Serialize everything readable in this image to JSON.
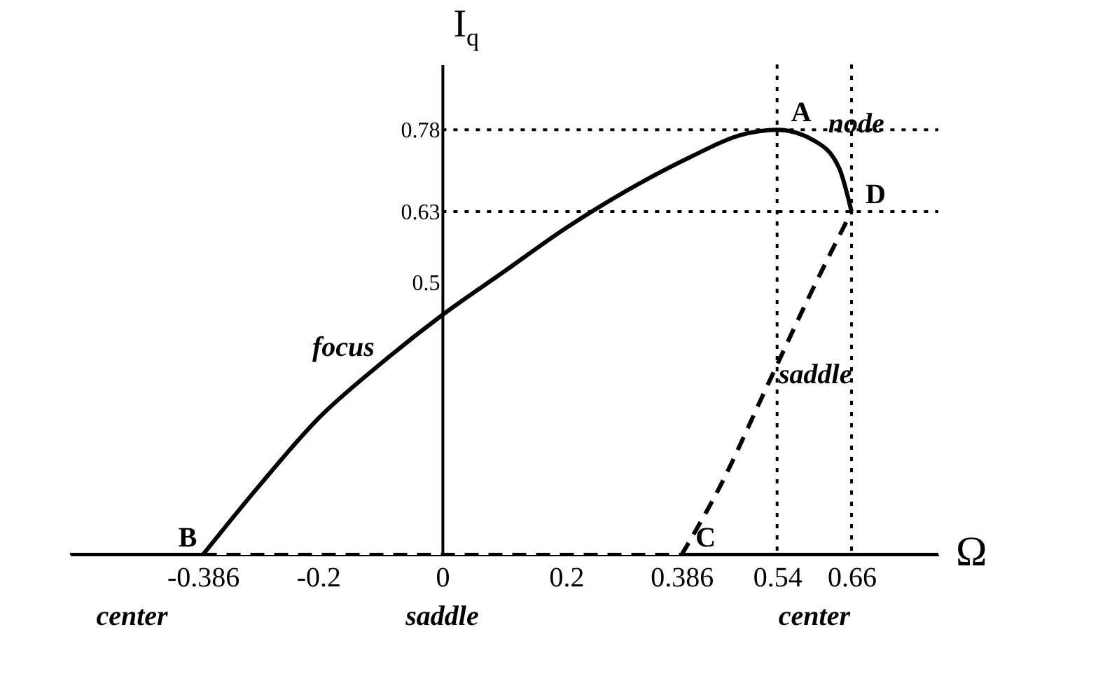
{
  "chart_data": {
    "type": "line",
    "xlabel": "Ω",
    "ylabel": "I$_{q}$",
    "xlim": [
      -0.6,
      0.8
    ],
    "ylim": [
      0,
      0.9
    ],
    "xticks": [
      -0.386,
      -0.2,
      0,
      0.2,
      0.386,
      0.54,
      0.66
    ],
    "yticks": [
      0.5,
      0.63,
      0.78
    ],
    "grid": false,
    "series": [
      {
        "color": "#000000",
        "line_style": "solid",
        "x": [
          -0.386,
          -0.3,
          -0.2,
          -0.1,
          0,
          0.1,
          0.2,
          0.3,
          0.4,
          0.48,
          0.54,
          0.6,
          0.64,
          0.66
        ],
        "values": [
          0,
          0.12,
          0.25,
          0.35,
          0.44,
          0.52,
          0.6,
          0.67,
          0.73,
          0.77,
          0.78,
          0.76,
          0.71,
          0.63
        ]
      },
      {
        "color": "#000000",
        "line_style": "dashed",
        "x": [
          0.386,
          0.45,
          0.52,
          0.59,
          0.66
        ],
        "values": [
          0,
          0.13,
          0.3,
          0.47,
          0.63
        ]
      },
      {
        "color": "#000000",
        "line_style": "solid",
        "x": [
          -0.6,
          -0.386
        ],
        "values": [
          0,
          0
        ]
      },
      {
        "color": "#000000",
        "line_style": "dashed",
        "x": [
          -0.386,
          0.386
        ],
        "values": [
          0,
          0
        ]
      },
      {
        "color": "#000000",
        "line_style": "solid",
        "x": [
          0.386,
          0.8
        ],
        "values": [
          0,
          0
        ]
      }
    ],
    "ref_lines": [
      {
        "axis": "y",
        "value": 0.78,
        "line_style": "dotted"
      },
      {
        "axis": "y",
        "value": 0.63,
        "line_style": "dotted"
      },
      {
        "axis": "x",
        "value": 0.54,
        "line_style": "dotted"
      },
      {
        "axis": "x",
        "value": 0.66,
        "line_style": "dotted"
      }
    ],
    "annotations": [
      {
        "text": "A",
        "x": 0.54,
        "y": 0.78
      },
      {
        "text": "B",
        "x": -0.386,
        "y": 0
      },
      {
        "text": "C",
        "x": 0.386,
        "y": 0
      },
      {
        "text": "D",
        "x": 0.66,
        "y": 0.63
      },
      {
        "text": "node",
        "x": 0.6,
        "y": 0.76
      },
      {
        "text": "focus",
        "x": -0.1,
        "y": 0.35
      },
      {
        "text": "saddle",
        "x": 0.52,
        "y": 0.3
      },
      {
        "text": "center",
        "x": -0.5,
        "y": 0
      },
      {
        "text": "saddle",
        "x": 0,
        "y": 0
      },
      {
        "text": "center",
        "x": 0.6,
        "y": 0
      }
    ]
  }
}
